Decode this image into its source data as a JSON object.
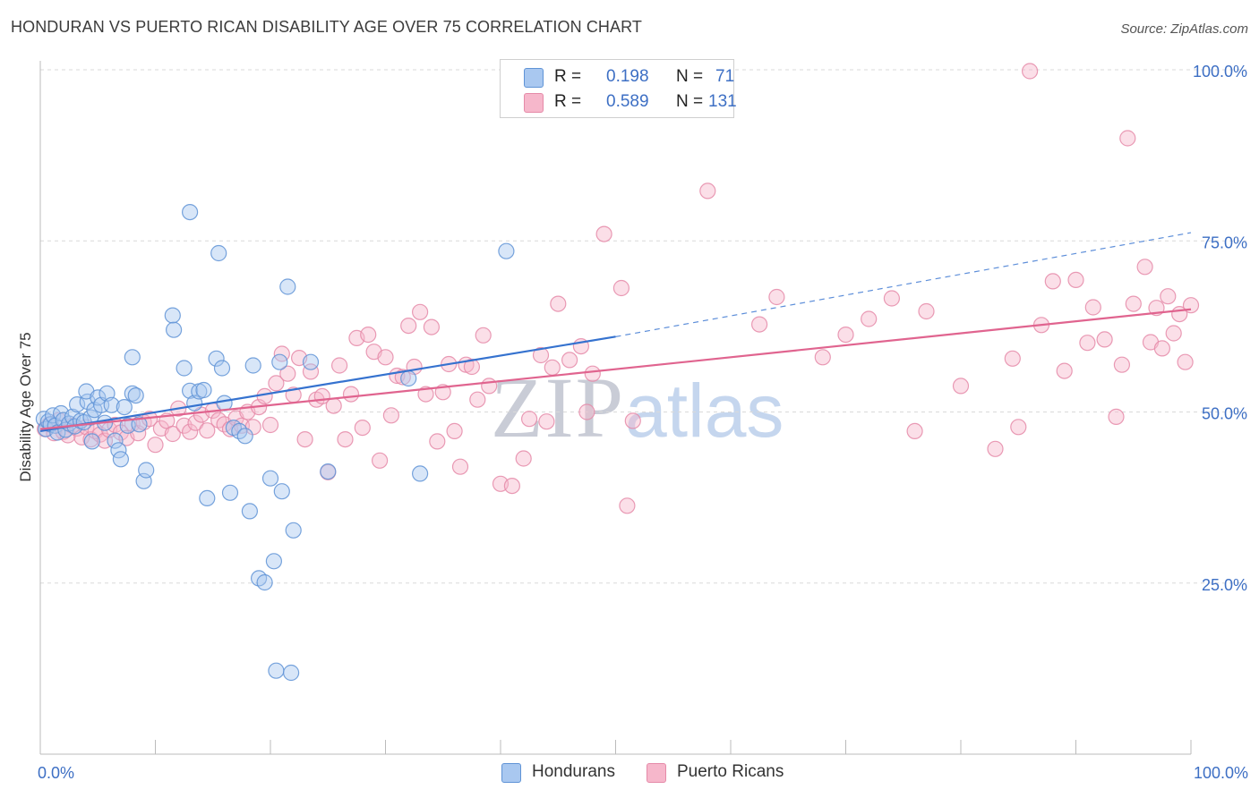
{
  "header": {
    "title": "HONDURAN VS PUERTO RICAN DISABILITY AGE OVER 75 CORRELATION CHART",
    "source": "Source: ZipAtlas.com"
  },
  "watermark": {
    "zip": "ZIP",
    "atlas": "atlas"
  },
  "legend": {
    "rows": [
      {
        "r_label": "R =",
        "r_value": "0.198",
        "n_label": "N =",
        "n_value": "71"
      },
      {
        "r_label": "R =",
        "r_value": "0.589",
        "n_label": "N =",
        "n_value": "131"
      }
    ]
  },
  "bottom_legend": {
    "hondurans": "Hondurans",
    "puerto_ricans": "Puerto Ricans"
  },
  "colors": {
    "hondurans_fill": "#a9c8f0",
    "hondurans_stroke": "#5f93d6",
    "hondurans_line": "#3572cf",
    "puerto_fill": "#f6b7cb",
    "puerto_stroke": "#e58aa8",
    "puerto_line": "#e0648f",
    "grid": "#d9d9d9",
    "tick_text": "#3d6fc4"
  },
  "chart_data": {
    "type": "scatter",
    "title": "HONDURAN VS PUERTO RICAN DISABILITY AGE OVER 75 CORRELATION CHART",
    "xlabel": "",
    "ylabel": "Disability Age Over 75",
    "xlim": [
      0,
      100
    ],
    "ylim": [
      0,
      100
    ],
    "x_tick_labels": [
      "0.0%",
      "100.0%"
    ],
    "y_ticks": [
      25,
      50,
      75,
      100
    ],
    "y_tick_labels": [
      "25.0%",
      "50.0%",
      "75.0%",
      "100.0%"
    ],
    "grid": true,
    "legend_position": "top-center",
    "series": [
      {
        "name": "Hondurans",
        "r": 0.198,
        "n": 71,
        "trend": {
          "x": [
            0,
            50
          ],
          "y": [
            47.2,
            61.0
          ],
          "dashed_to": [
            100,
            76.2
          ]
        },
        "points": [
          [
            0.3,
            49.0
          ],
          [
            0.5,
            47.5
          ],
          [
            0.7,
            48.6
          ],
          [
            0.9,
            48.2
          ],
          [
            1.1,
            49.5
          ],
          [
            1.3,
            48.0
          ],
          [
            1.5,
            47.0
          ],
          [
            1.8,
            49.8
          ],
          [
            2.0,
            48.8
          ],
          [
            2.2,
            47.4
          ],
          [
            2.5,
            48.3
          ],
          [
            2.8,
            49.3
          ],
          [
            3.0,
            47.9
          ],
          [
            3.2,
            51.1
          ],
          [
            3.5,
            48.7
          ],
          [
            3.8,
            48.5
          ],
          [
            4.1,
            51.5
          ],
          [
            4.4,
            49.2
          ],
          [
            4.7,
            50.3
          ],
          [
            4.0,
            53.0
          ],
          [
            4.5,
            45.7
          ],
          [
            5.0,
            52.1
          ],
          [
            5.3,
            51.0
          ],
          [
            5.6,
            48.4
          ],
          [
            5.8,
            52.7
          ],
          [
            6.2,
            51.0
          ],
          [
            6.5,
            45.8
          ],
          [
            6.8,
            44.4
          ],
          [
            7.0,
            43.1
          ],
          [
            7.3,
            50.7
          ],
          [
            7.6,
            48.0
          ],
          [
            8.0,
            52.7
          ],
          [
            8.3,
            52.4
          ],
          [
            8.6,
            48.2
          ],
          [
            9.0,
            39.9
          ],
          [
            9.2,
            41.5
          ],
          [
            8.0,
            58.0
          ],
          [
            11.5,
            64.1
          ],
          [
            11.6,
            62.0
          ],
          [
            12.5,
            56.4
          ],
          [
            13.0,
            53.1
          ],
          [
            13.4,
            51.3
          ],
          [
            13.8,
            53.0
          ],
          [
            14.2,
            53.2
          ],
          [
            14.5,
            37.4
          ],
          [
            15.3,
            57.8
          ],
          [
            15.8,
            56.4
          ],
          [
            16.0,
            51.3
          ],
          [
            16.5,
            38.2
          ],
          [
            16.8,
            47.7
          ],
          [
            17.3,
            47.2
          ],
          [
            17.8,
            46.5
          ],
          [
            18.2,
            35.5
          ],
          [
            18.5,
            56.8
          ],
          [
            19.0,
            25.7
          ],
          [
            19.5,
            25.1
          ],
          [
            20.0,
            40.3
          ],
          [
            20.3,
            28.2
          ],
          [
            21.0,
            38.4
          ],
          [
            20.8,
            57.3
          ],
          [
            22.0,
            32.7
          ],
          [
            21.5,
            68.3
          ],
          [
            23.5,
            57.3
          ],
          [
            25.0,
            41.3
          ],
          [
            13.0,
            79.2
          ],
          [
            15.5,
            73.2
          ],
          [
            20.5,
            12.2
          ],
          [
            21.8,
            11.9
          ],
          [
            32.0,
            54.9
          ],
          [
            33.0,
            41.0
          ],
          [
            40.5,
            73.5
          ]
        ]
      },
      {
        "name": "Puerto Ricans",
        "r": 0.589,
        "n": 131,
        "trend": {
          "x": [
            0,
            100
          ],
          "y": [
            47.5,
            65.0
          ]
        },
        "points": [
          [
            0.4,
            47.5
          ],
          [
            0.8,
            48.2
          ],
          [
            1.2,
            46.9
          ],
          [
            1.6,
            48.8
          ],
          [
            2.0,
            47.1
          ],
          [
            2.4,
            46.6
          ],
          [
            2.8,
            48.0
          ],
          [
            3.2,
            47.6
          ],
          [
            3.6,
            46.3
          ],
          [
            4.0,
            47.8
          ],
          [
            4.4,
            46.0
          ],
          [
            4.8,
            47.2
          ],
          [
            5.2,
            46.7
          ],
          [
            5.6,
            45.8
          ],
          [
            6.0,
            47.4
          ],
          [
            6.5,
            48.1
          ],
          [
            7.0,
            47.0
          ],
          [
            7.5,
            46.2
          ],
          [
            8.0,
            48.3
          ],
          [
            8.5,
            46.9
          ],
          [
            9.0,
            48.5
          ],
          [
            9.5,
            49.0
          ],
          [
            10.0,
            45.2
          ],
          [
            10.5,
            47.6
          ],
          [
            11.0,
            48.7
          ],
          [
            11.5,
            46.8
          ],
          [
            12.0,
            50.5
          ],
          [
            12.5,
            48.0
          ],
          [
            13.0,
            47.1
          ],
          [
            13.5,
            48.4
          ],
          [
            14.0,
            49.6
          ],
          [
            14.5,
            47.3
          ],
          [
            15.0,
            50.2
          ],
          [
            15.5,
            48.8
          ],
          [
            16.0,
            48.2
          ],
          [
            16.5,
            47.5
          ],
          [
            17.0,
            49.1
          ],
          [
            17.5,
            48.0
          ],
          [
            18.0,
            50.0
          ],
          [
            18.5,
            47.8
          ],
          [
            19.0,
            50.7
          ],
          [
            19.5,
            52.3
          ],
          [
            20.0,
            48.1
          ],
          [
            20.5,
            54.2
          ],
          [
            21.0,
            58.5
          ],
          [
            21.5,
            55.6
          ],
          [
            22.0,
            52.5
          ],
          [
            22.5,
            57.9
          ],
          [
            23.0,
            46.0
          ],
          [
            23.5,
            55.9
          ],
          [
            24.0,
            51.8
          ],
          [
            24.5,
            52.3
          ],
          [
            25.0,
            41.2
          ],
          [
            25.5,
            50.9
          ],
          [
            26.0,
            56.8
          ],
          [
            26.5,
            46.0
          ],
          [
            27.0,
            52.6
          ],
          [
            27.5,
            60.8
          ],
          [
            28.0,
            47.7
          ],
          [
            28.5,
            61.3
          ],
          [
            29.0,
            58.8
          ],
          [
            29.5,
            42.9
          ],
          [
            30.0,
            58.0
          ],
          [
            30.5,
            49.5
          ],
          [
            31.0,
            55.3
          ],
          [
            31.5,
            55.1
          ],
          [
            32.0,
            62.6
          ],
          [
            32.5,
            56.6
          ],
          [
            33.0,
            64.6
          ],
          [
            33.5,
            52.6
          ],
          [
            34.0,
            62.4
          ],
          [
            34.5,
            45.7
          ],
          [
            35.0,
            52.9
          ],
          [
            35.5,
            57.0
          ],
          [
            36.0,
            47.2
          ],
          [
            36.5,
            42.0
          ],
          [
            37.0,
            56.9
          ],
          [
            37.5,
            56.6
          ],
          [
            38.0,
            51.8
          ],
          [
            38.5,
            61.2
          ],
          [
            39.0,
            53.8
          ],
          [
            40.0,
            39.5
          ],
          [
            41.0,
            39.2
          ],
          [
            42.0,
            43.2
          ],
          [
            42.5,
            49.0
          ],
          [
            43.5,
            58.3
          ],
          [
            44.0,
            48.6
          ],
          [
            44.5,
            56.5
          ],
          [
            45.0,
            65.8
          ],
          [
            46.0,
            57.6
          ],
          [
            47.0,
            59.6
          ],
          [
            48.0,
            55.6
          ],
          [
            47.5,
            50.0
          ],
          [
            49.0,
            76.0
          ],
          [
            50.5,
            68.1
          ],
          [
            51.0,
            36.3
          ],
          [
            51.5,
            48.7
          ],
          [
            58.0,
            82.3
          ],
          [
            62.5,
            62.8
          ],
          [
            64.0,
            66.8
          ],
          [
            68.0,
            58.0
          ],
          [
            70.0,
            61.3
          ],
          [
            72.0,
            63.6
          ],
          [
            74.0,
            66.6
          ],
          [
            76.0,
            47.2
          ],
          [
            77.0,
            64.7
          ],
          [
            80.0,
            53.8
          ],
          [
            83.0,
            44.6
          ],
          [
            84.5,
            57.8
          ],
          [
            85.0,
            47.8
          ],
          [
            86.0,
            99.8
          ],
          [
            87.0,
            62.7
          ],
          [
            88.0,
            69.1
          ],
          [
            89.0,
            56.0
          ],
          [
            90.0,
            69.3
          ],
          [
            91.0,
            60.1
          ],
          [
            91.5,
            65.3
          ],
          [
            92.5,
            60.6
          ],
          [
            93.5,
            49.3
          ],
          [
            94.0,
            56.9
          ],
          [
            94.5,
            90.0
          ],
          [
            95.0,
            65.8
          ],
          [
            96.0,
            71.2
          ],
          [
            96.5,
            60.2
          ],
          [
            97.0,
            65.2
          ],
          [
            97.5,
            59.3
          ],
          [
            98.0,
            66.9
          ],
          [
            98.5,
            61.5
          ],
          [
            99.0,
            64.3
          ],
          [
            99.5,
            57.3
          ],
          [
            100.0,
            65.6
          ]
        ]
      }
    ]
  }
}
